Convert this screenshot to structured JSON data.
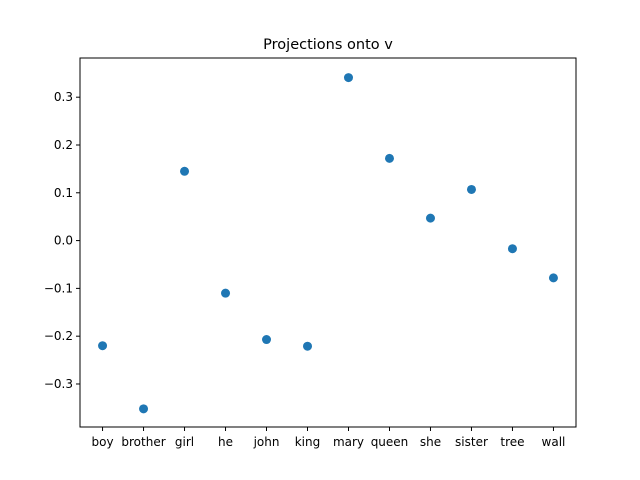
{
  "chart_data": {
    "type": "scatter",
    "title": "Projections onto v",
    "xlabel": "",
    "ylabel": "",
    "categories": [
      "boy",
      "brother",
      "girl",
      "he",
      "john",
      "king",
      "mary",
      "queen",
      "she",
      "sister",
      "tree",
      "wall"
    ],
    "values": [
      -0.22,
      -0.352,
      0.145,
      -0.11,
      -0.207,
      -0.221,
      0.341,
      0.172,
      0.047,
      0.107,
      -0.017,
      -0.078
    ],
    "ylim": [
      -0.39,
      0.382
    ],
    "yticks": [
      -0.3,
      -0.2,
      -0.1,
      0.0,
      0.1,
      0.2,
      0.3
    ],
    "ytick_labels": [
      "−0.3",
      "−0.2",
      "−0.1",
      "0.0",
      "0.1",
      "0.2",
      "0.3"
    ],
    "grid": false,
    "marker_color": "#1f77b4"
  }
}
